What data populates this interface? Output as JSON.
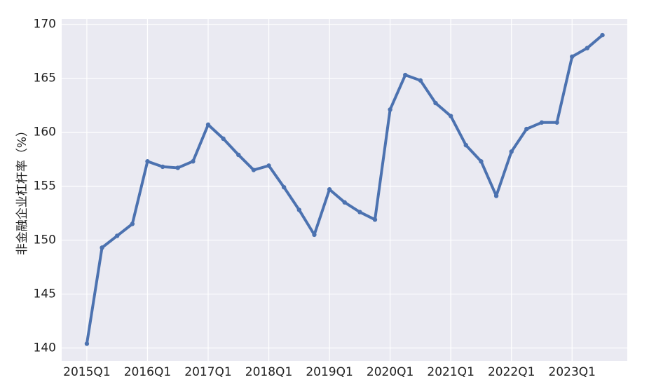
{
  "chart_data": {
    "type": "line",
    "y_label": "非金融企业杠杆率（%）",
    "categories": [
      "2015Q1",
      null,
      null,
      null,
      "2016Q1",
      null,
      null,
      null,
      "2017Q1",
      null,
      null,
      null,
      "2018Q1",
      null,
      null,
      null,
      "2019Q1",
      null,
      null,
      null,
      "2020Q1",
      null,
      null,
      null,
      "2021Q1",
      null,
      null,
      null,
      "2022Q1",
      null,
      null,
      null,
      "2023Q1",
      null,
      null
    ],
    "values": [
      140.4,
      149.3,
      150.4,
      151.5,
      157.3,
      156.8,
      156.7,
      157.3,
      160.7,
      159.4,
      157.9,
      156.5,
      156.9,
      154.9,
      152.8,
      150.5,
      154.7,
      153.5,
      152.6,
      151.9,
      162.1,
      165.3,
      164.8,
      162.7,
      161.5,
      158.8,
      157.3,
      154.1,
      158.2,
      160.3,
      160.9,
      160.9,
      167.0,
      167.8,
      169.0
    ],
    "color": "#4c72b0",
    "ylim": [
      138.8,
      170.5
    ],
    "yticks": [
      140,
      145,
      150,
      155,
      160,
      165,
      170
    ],
    "grid": true
  }
}
